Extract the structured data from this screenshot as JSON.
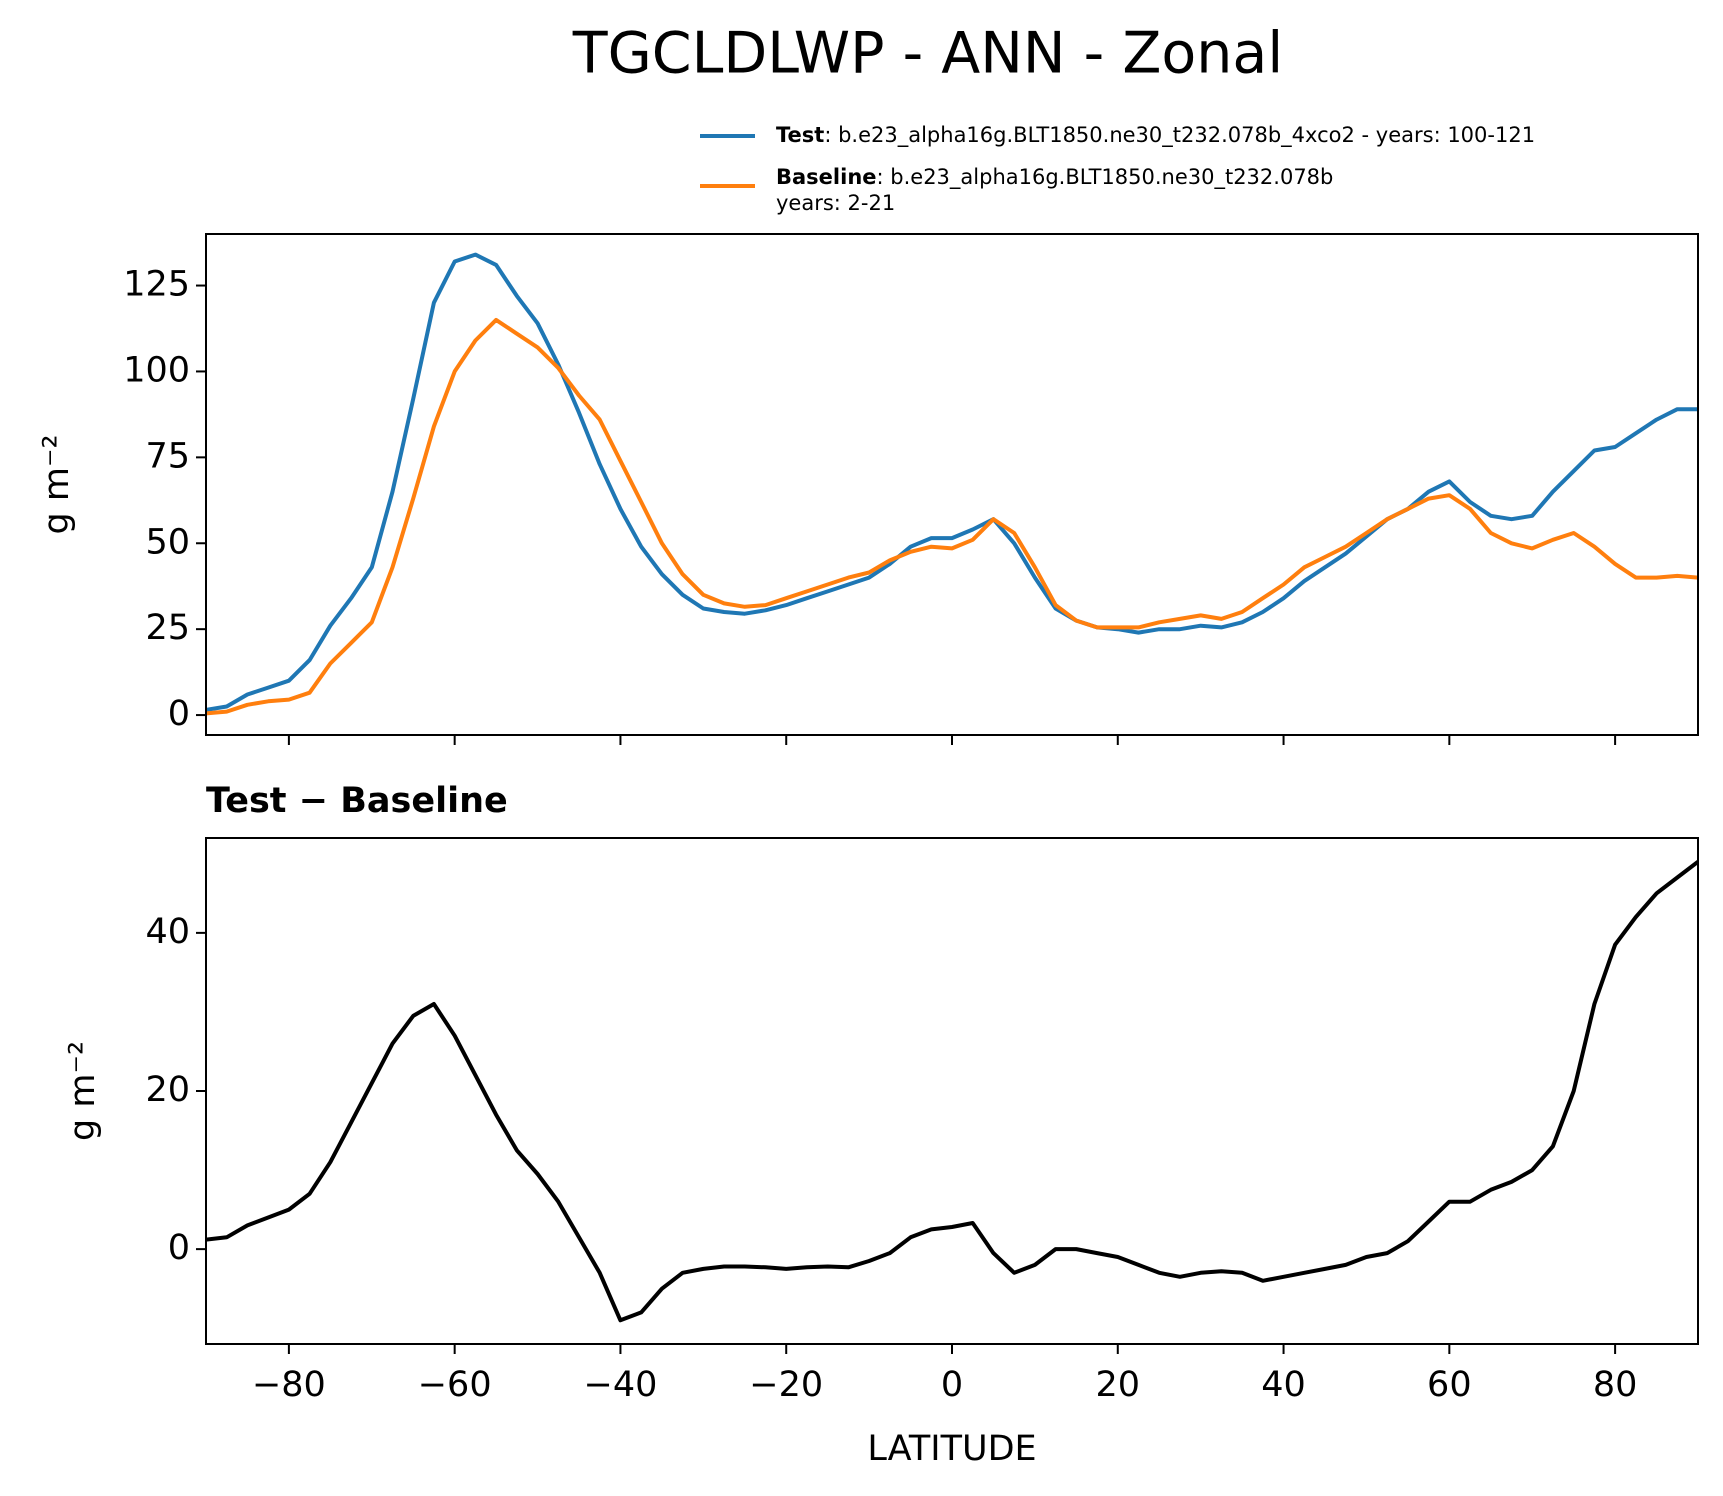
{
  "chart_data": [
    {
      "type": "line",
      "title": "TGCLDLWP - ANN - Zonal",
      "y_label": "g m⁻²",
      "xlim": [
        -90,
        90
      ],
      "ylim": [
        -5.8,
        140
      ],
      "yticks": [
        0,
        25,
        50,
        75,
        100,
        125
      ],
      "x": [
        -90,
        -87.5,
        -85,
        -82.5,
        -80,
        -77.5,
        -75,
        -72.5,
        -70,
        -67.5,
        -65,
        -62.5,
        -60,
        -57.5,
        -55,
        -52.5,
        -50,
        -47.5,
        -45,
        -42.5,
        -40,
        -37.5,
        -35,
        -32.5,
        -30,
        -27.5,
        -25,
        -22.5,
        -20,
        -17.5,
        -15,
        -12.5,
        -10,
        -7.5,
        -5,
        -2.5,
        0,
        2.5,
        5,
        7.5,
        10,
        12.5,
        15,
        17.5,
        20,
        22.5,
        25,
        27.5,
        30,
        32.5,
        35,
        37.5,
        40,
        42.5,
        45,
        47.5,
        50,
        52.5,
        55,
        57.5,
        60,
        62.5,
        65,
        67.5,
        70,
        72.5,
        75,
        77.5,
        80,
        82.5,
        85,
        87.5,
        90
      ],
      "series": [
        {
          "name": "Test",
          "description": [
            ": b.e23_alpha16g.BLT1850.ne30_t232.078b_4xco2 - years: 100-121"
          ],
          "color": "#1f77b4",
          "values": [
            1.5,
            2.5,
            6,
            8,
            10,
            16,
            26,
            34,
            43,
            65,
            92,
            120,
            132,
            134,
            131,
            122,
            114,
            102,
            88,
            73,
            60,
            49,
            41,
            35,
            31,
            30,
            29.5,
            30.5,
            32,
            34,
            36,
            38,
            40,
            44,
            49,
            51.5,
            51.5,
            54,
            57,
            50,
            40,
            31,
            27.5,
            25.5,
            25,
            24,
            25,
            25,
            26,
            25.5,
            27,
            30,
            34,
            39,
            43,
            47,
            52,
            57,
            60,
            65,
            68,
            62,
            58,
            57,
            58,
            65,
            71,
            77,
            78,
            82,
            86,
            89,
            89
          ]
        },
        {
          "name": "Baseline",
          "description": [
            ": b.e23_alpha16g.BLT1850.ne30_t232.078b",
            "years: 2-21"
          ],
          "color": "#ff7f0e",
          "values": [
            0.5,
            1,
            3,
            4,
            4.5,
            6.5,
            15,
            21,
            27,
            43,
            63,
            84,
            100,
            109,
            115,
            111,
            107,
            101,
            93,
            86,
            74,
            62,
            50,
            41,
            35,
            32.5,
            31.5,
            32,
            34,
            36,
            38,
            40,
            41.5,
            45,
            47.5,
            49,
            48.5,
            51,
            57,
            53,
            43,
            32,
            27.5,
            25.5,
            25.5,
            25.5,
            27,
            28,
            29,
            28,
            30,
            34,
            38,
            43,
            46,
            49,
            53,
            57,
            60,
            63,
            64,
            60,
            53,
            50,
            48.5,
            51,
            53,
            49,
            44,
            40,
            40,
            40.5,
            40
          ]
        }
      ]
    },
    {
      "type": "line",
      "title": "Test − Baseline",
      "y_label": "g m⁻²",
      "x_label": "LATITUDE",
      "xlim": [
        -90,
        90
      ],
      "ylim": [
        -12,
        52
      ],
      "yticks": [
        0,
        20,
        40
      ],
      "xticks": [
        {
          "value": -80,
          "label": "−80"
        },
        {
          "value": -60,
          "label": "−60"
        },
        {
          "value": -40,
          "label": "−40"
        },
        {
          "value": -20,
          "label": "−20"
        },
        0,
        20,
        40,
        60,
        80
      ],
      "x": [
        -90,
        -87.5,
        -85,
        -82.5,
        -80,
        -77.5,
        -75,
        -72.5,
        -70,
        -67.5,
        -65,
        -62.5,
        -60,
        -57.5,
        -55,
        -52.5,
        -50,
        -47.5,
        -45,
        -42.5,
        -40,
        -37.5,
        -35,
        -32.5,
        -30,
        -27.5,
        -25,
        -22.5,
        -20,
        -17.5,
        -15,
        -12.5,
        -10,
        -7.5,
        -5,
        -2.5,
        0,
        2.5,
        5,
        7.5,
        10,
        12.5,
        15,
        17.5,
        20,
        22.5,
        25,
        27.5,
        30,
        32.5,
        35,
        37.5,
        40,
        42.5,
        45,
        47.5,
        50,
        52.5,
        55,
        57.5,
        60,
        62.5,
        65,
        67.5,
        70,
        72.5,
        75,
        77.5,
        80,
        82.5,
        85,
        87.5,
        90
      ],
      "series": [
        {
          "color": "#000000",
          "values": [
            1.2,
            1.5,
            3,
            4,
            5,
            7,
            11,
            16,
            21,
            26,
            29.5,
            31,
            27,
            22,
            17,
            12.5,
            9.5,
            6,
            1.5,
            -3,
            -9,
            -8,
            -5,
            -3,
            -2.5,
            -2.2,
            -2.2,
            -2.3,
            -2.5,
            -2.3,
            -2.2,
            -2.3,
            -1.5,
            -0.5,
            1.5,
            2.5,
            2.8,
            3.3,
            -0.5,
            -3,
            -2,
            0,
            0,
            -0.5,
            -1,
            -2,
            -3,
            -3.5,
            -3,
            -2.8,
            -3,
            -4,
            -3.5,
            -3,
            -2.5,
            -2,
            -1,
            -0.5,
            1,
            3.5,
            6,
            6,
            7.5,
            8.5,
            10,
            13,
            20,
            31,
            38.5,
            42,
            45,
            47,
            49
          ]
        }
      ]
    }
  ]
}
